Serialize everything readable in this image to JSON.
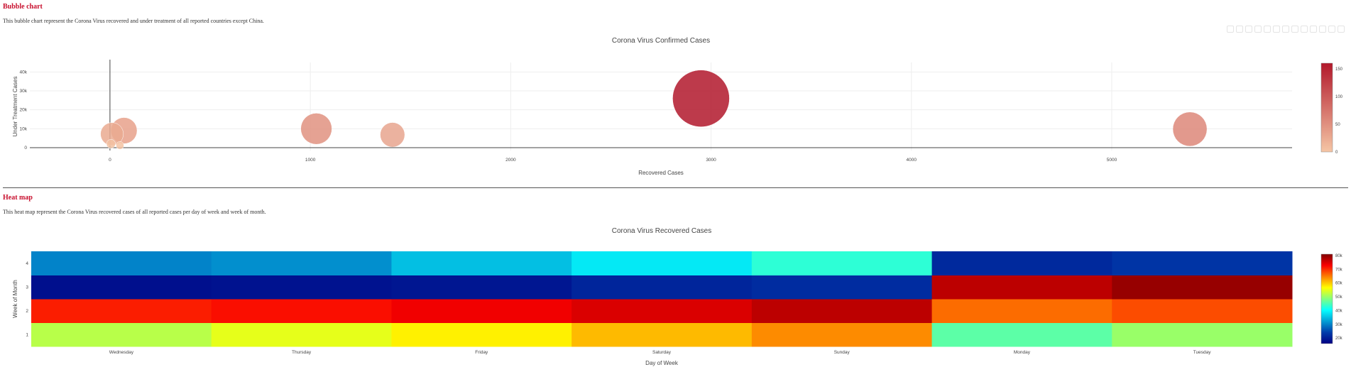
{
  "sections": {
    "bubble": {
      "heading": "Bubble chart",
      "description": "This bubble chart represent the Corona Virus recovered and under treatment of all reported countries except China."
    },
    "heatmap": {
      "heading": "Heat map",
      "description": "This heat map represent the Corona Virus recovered cases of all reported cases per day of week and week of month."
    }
  },
  "colors": {
    "heading": "#c8102e",
    "bubble_low": "#f5c6a5",
    "bubble_high": "#b2182b"
  },
  "modebar_icons": [
    "camera-icon",
    "zoom-icon",
    "pan-icon",
    "box-select-icon",
    "lasso-icon",
    "zoom-in-icon",
    "zoom-out-icon",
    "autoscale-icon",
    "reset-icon",
    "spike-icon",
    "hover-closest-icon",
    "hover-compare-icon",
    "plotly-logo-icon"
  ],
  "chart_data": [
    {
      "type": "scatter",
      "title": "Corona Virus Confirmed Cases",
      "xlabel": "Recovered Cases",
      "ylabel": "Under Treatment Cases",
      "xlim": [
        -400,
        5900
      ],
      "ylim": [
        -1500,
        45000
      ],
      "x_ticks": [
        0,
        1000,
        2000,
        3000,
        4000,
        5000
      ],
      "x_tick_labels": [
        "0",
        "1000",
        "2000",
        "3000",
        "4000",
        "5000"
      ],
      "y_ticks": [
        0,
        10000,
        20000,
        30000,
        40000
      ],
      "y_tick_labels": [
        "0",
        "10k",
        "20k",
        "30k",
        "40k"
      ],
      "grid": true,
      "colorbar": {
        "min": 0,
        "max": 160,
        "ticks": [
          0,
          50,
          100,
          150
        ],
        "tick_labels": [
          "0",
          "50",
          "100",
          "150"
        ]
      },
      "points": [
        {
          "x": 2950,
          "y": 26000,
          "size": 160
        },
        {
          "x": 5390,
          "y": 9800,
          "size": 58
        },
        {
          "x": 1030,
          "y": 10000,
          "size": 48
        },
        {
          "x": 70,
          "y": 9000,
          "size": 34
        },
        {
          "x": 1410,
          "y": 6800,
          "size": 30
        },
        {
          "x": 10,
          "y": 7200,
          "size": 26
        },
        {
          "x": 50,
          "y": 1200,
          "size": 3
        },
        {
          "x": 5,
          "y": 2000,
          "size": 4
        }
      ]
    },
    {
      "type": "heatmap",
      "title": "Corona Virus Recovered Cases",
      "xlabel": "Day of Week",
      "ylabel": "Week of Month",
      "x": [
        "Wednesday",
        "Thursday",
        "Friday",
        "Saturday",
        "Sunday",
        "Monday",
        "Tuesday"
      ],
      "y": [
        "1",
        "2",
        "3",
        "4"
      ],
      "z_range": [
        16000,
        81000
      ],
      "colorbar": {
        "ticks": [
          20000,
          30000,
          40000,
          50000,
          60000,
          70000,
          80000
        ],
        "tick_labels": [
          "20k",
          "30k",
          "40k",
          "50k",
          "60k",
          "70k",
          "80k"
        ]
      },
      "z": [
        [
          52000,
          55000,
          57500,
          61000,
          64000,
          46000,
          50000
        ],
        [
          71000,
          72000,
          73500,
          75000,
          77000,
          66000,
          68000
        ],
        [
          18000,
          18500,
          19000,
          21000,
          22000,
          77000,
          79500
        ],
        [
          30000,
          31000,
          35000,
          38500,
          43000,
          21500,
          23000
        ]
      ]
    }
  ]
}
